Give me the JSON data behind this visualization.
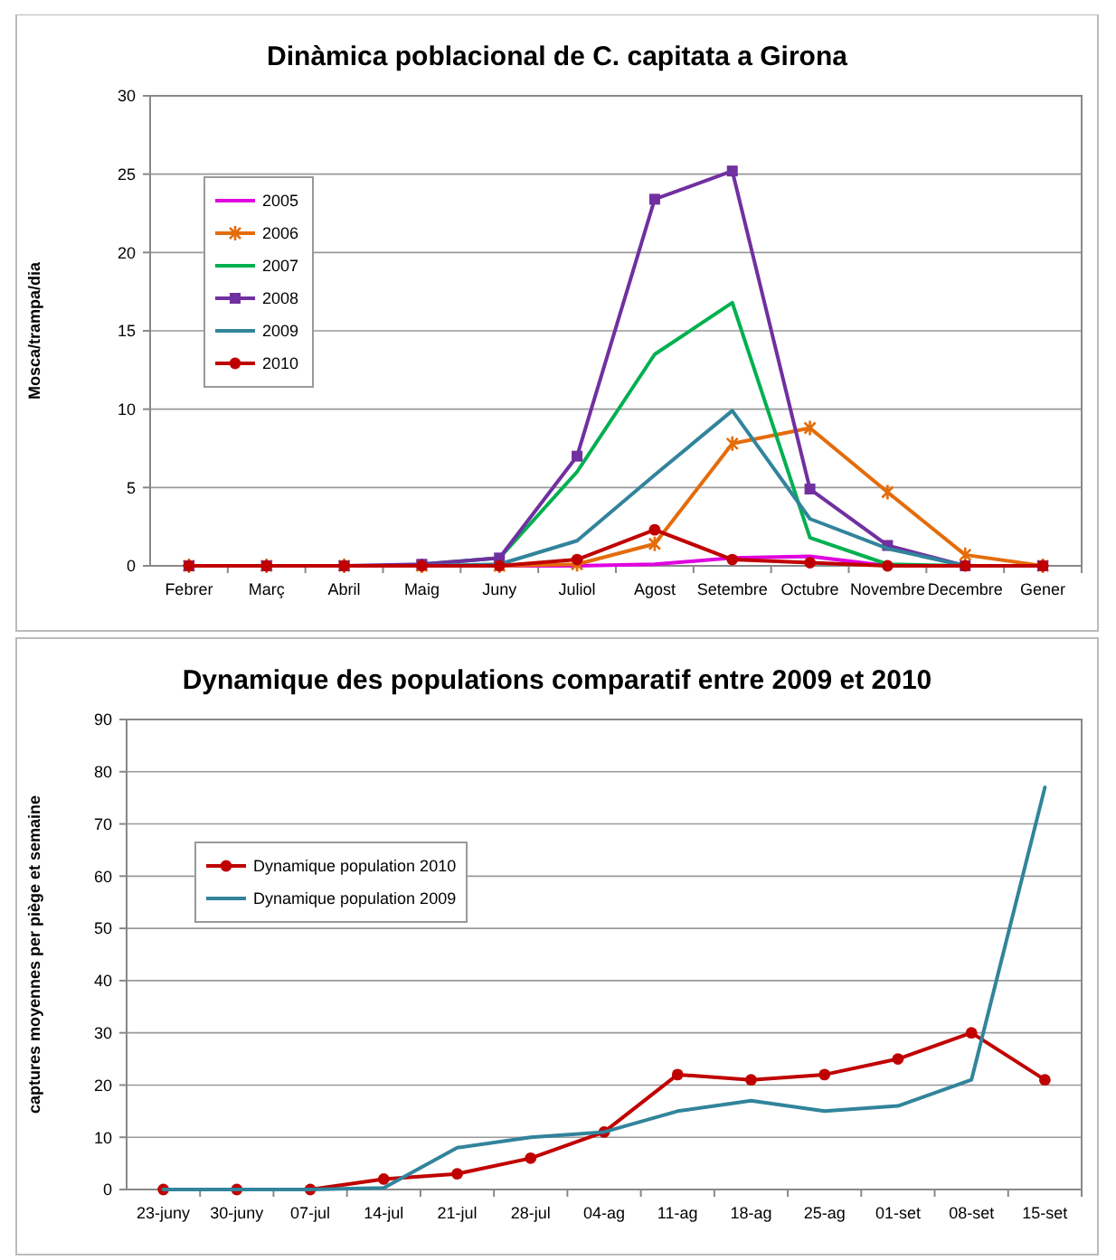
{
  "chart_data": [
    {
      "type": "line",
      "title": "Dinàmica poblacional de C. capitata a Girona",
      "ylabel": "Mosca/trampa/dia",
      "categories": [
        "Febrer",
        "Març",
        "Abril",
        "Maig",
        "Juny",
        "Juliol",
        "Agost",
        "Setembre",
        "Octubre",
        "Novembre",
        "Decembre",
        "Gener"
      ],
      "ylim": [
        0,
        30
      ],
      "yticks": [
        0,
        5,
        10,
        15,
        20,
        25,
        30
      ],
      "grid": "y",
      "legend": "top left",
      "series": [
        {
          "name": "2005",
          "color": "#e000e0",
          "marker": "none",
          "values": [
            null,
            null,
            null,
            0,
            0,
            0,
            0.1,
            0.5,
            0.6,
            0,
            0,
            0
          ]
        },
        {
          "name": "2006",
          "color": "#e46c0a",
          "marker": "cross",
          "values": [
            0,
            0,
            0,
            0,
            0,
            0.1,
            1.4,
            7.8,
            8.8,
            4.7,
            0.7,
            0
          ]
        },
        {
          "name": "2007",
          "color": "#00b050",
          "marker": "none",
          "values": [
            null,
            null,
            null,
            0.1,
            0.5,
            6,
            13.5,
            16.8,
            1.8,
            0.1,
            0,
            0
          ]
        },
        {
          "name": "2008",
          "color": "#7030a0",
          "marker": "square",
          "values": [
            0,
            0,
            0,
            0.1,
            0.5,
            7,
            23.4,
            25.2,
            4.9,
            1.3,
            0,
            0
          ]
        },
        {
          "name": "2009",
          "color": "#31849b",
          "marker": "none",
          "values": [
            null,
            null,
            0,
            0,
            0.1,
            1.6,
            5.8,
            9.9,
            3,
            1.1,
            0,
            0
          ]
        },
        {
          "name": "2010",
          "color": "#c00000",
          "marker": "circle",
          "values": [
            0,
            0,
            0,
            0,
            0,
            0.4,
            2.3,
            0.4,
            0.2,
            0,
            0,
            0
          ]
        }
      ]
    },
    {
      "type": "line",
      "title": "Dynamique des populations comparatif entre 2009 et 2010",
      "ylabel": "captures moyennes per piège et semaine",
      "categories": [
        "23-juny",
        "30-juny",
        "07-jul",
        "14-jul",
        "21-jul",
        "28-jul",
        "04-ag",
        "11-ag",
        "18-ag",
        "25-ag",
        "01-set",
        "08-set",
        "15-set"
      ],
      "ylim": [
        0,
        90
      ],
      "yticks": [
        0,
        10,
        20,
        30,
        40,
        50,
        60,
        70,
        80,
        90
      ],
      "grid": "y",
      "legend": "top left",
      "series": [
        {
          "name": "Dynamique population 2010",
          "color": "#c00000",
          "marker": "circle",
          "values": [
            0,
            0,
            0,
            2,
            3,
            6,
            11,
            22,
            21,
            22,
            25,
            30,
            21
          ]
        },
        {
          "name": "Dynamique population 2009",
          "color": "#31849b",
          "marker": "none",
          "values": [
            0,
            0,
            0,
            0.3,
            8,
            10,
            11,
            15,
            17,
            15,
            16,
            21,
            77
          ]
        }
      ]
    }
  ]
}
